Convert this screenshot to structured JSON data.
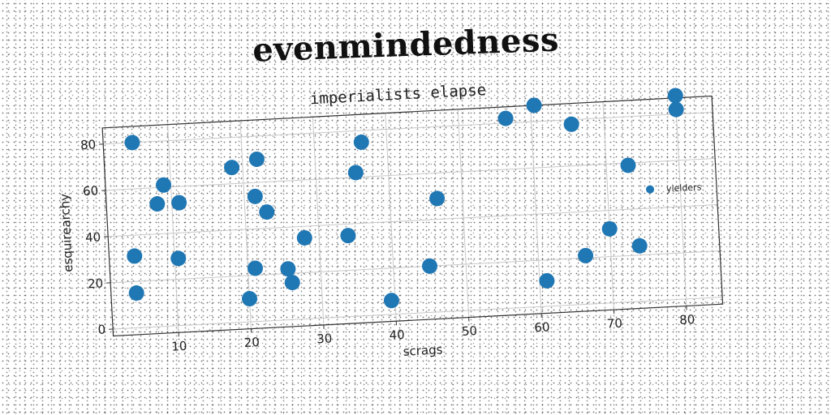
{
  "title": "evenmindedness",
  "chart_data": {
    "type": "scatter",
    "subtitle": "imperialists elapse",
    "xlabel": "scrags",
    "ylabel": "esquirearchy",
    "xlim": [
      1,
      85
    ],
    "ylim": [
      -3,
      87
    ],
    "xticks": [
      10,
      20,
      30,
      40,
      50,
      60,
      70,
      80
    ],
    "yticks": [
      0,
      20,
      40,
      60,
      80
    ],
    "grid": true,
    "legend_position": "right",
    "color": "#1f77b4",
    "series": [
      {
        "name": "yielders",
        "points": [
          {
            "x": 5,
            "y": 80
          },
          {
            "x": 4.5,
            "y": 31
          },
          {
            "x": 4.5,
            "y": 15
          },
          {
            "x": 9,
            "y": 61
          },
          {
            "x": 8,
            "y": 53
          },
          {
            "x": 11,
            "y": 53
          },
          {
            "x": 10.5,
            "y": 29
          },
          {
            "x": 18.5,
            "y": 67
          },
          {
            "x": 22,
            "y": 70
          },
          {
            "x": 21.5,
            "y": 54
          },
          {
            "x": 23,
            "y": 47
          },
          {
            "x": 21,
            "y": 23
          },
          {
            "x": 20,
            "y": 10
          },
          {
            "x": 25.5,
            "y": 22
          },
          {
            "x": 26,
            "y": 16
          },
          {
            "x": 28,
            "y": 35
          },
          {
            "x": 34,
            "y": 35
          },
          {
            "x": 36.5,
            "y": 75
          },
          {
            "x": 35.5,
            "y": 62
          },
          {
            "x": 39.5,
            "y": 6
          },
          {
            "x": 45,
            "y": 20
          },
          {
            "x": 46.5,
            "y": 49
          },
          {
            "x": 56.5,
            "y": 82
          },
          {
            "x": 60.5,
            "y": 87
          },
          {
            "x": 65.5,
            "y": 78
          },
          {
            "x": 61,
            "y": 11
          },
          {
            "x": 66.5,
            "y": 21
          },
          {
            "x": 73,
            "y": 59
          },
          {
            "x": 70,
            "y": 32
          },
          {
            "x": 74,
            "y": 24
          },
          {
            "x": 80,
            "y": 88
          },
          {
            "x": 80,
            "y": 82
          }
        ]
      }
    ]
  }
}
